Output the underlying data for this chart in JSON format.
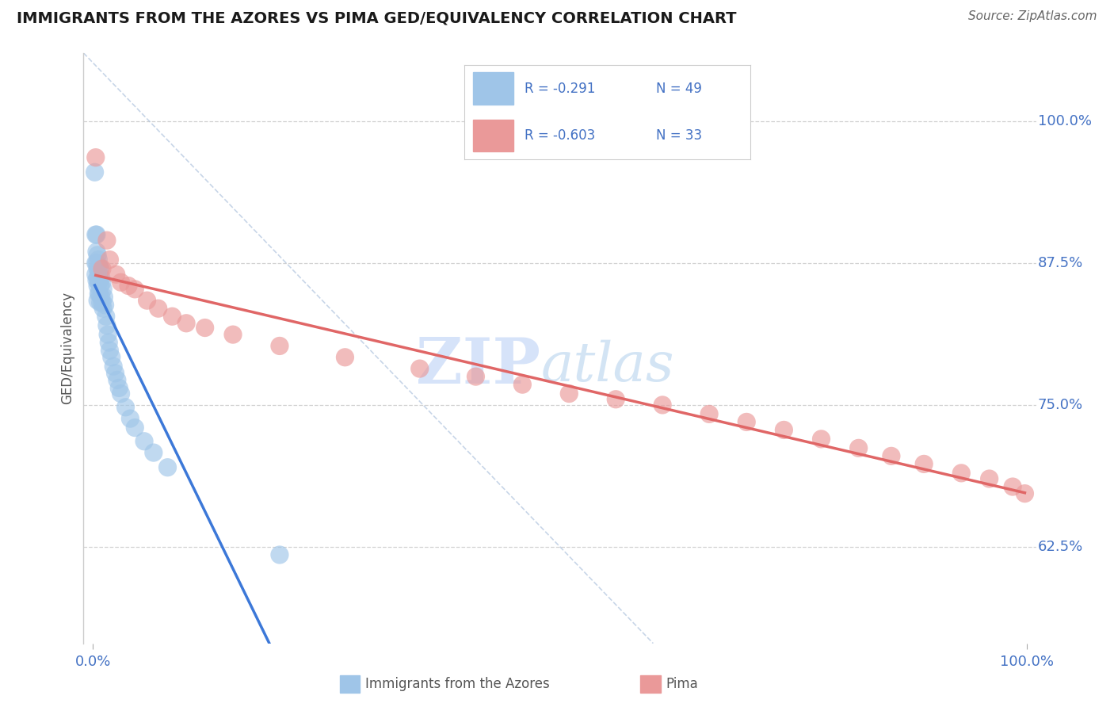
{
  "title": "IMMIGRANTS FROM THE AZORES VS PIMA GED/EQUIVALENCY CORRELATION CHART",
  "source_text": "Source: ZipAtlas.com",
  "ylabel": "GED/Equivalency",
  "right_ytick_labels": [
    "62.5%",
    "75.0%",
    "87.5%",
    "100.0%"
  ],
  "right_ytick_values": [
    0.625,
    0.75,
    0.875,
    1.0
  ],
  "xlim": [
    -0.01,
    1.01
  ],
  "ylim": [
    0.54,
    1.06
  ],
  "legend_r1": "R = -0.291",
  "legend_n1": "N = 49",
  "legend_r2": "R = -0.603",
  "legend_n2": "N = 33",
  "color_azores": "#9fc5e8",
  "color_pima": "#ea9999",
  "color_azores_line": "#3c78d8",
  "color_pima_line": "#e06666",
  "color_ref_line": "#b0c4de",
  "background_color": "#ffffff",
  "grid_color": "#cccccc",
  "bottom_legend_azores": "Immigrants from the Azores",
  "bottom_legend_pima": "Pima",
  "azores_x": [
    0.002,
    0.003,
    0.003,
    0.003,
    0.004,
    0.004,
    0.004,
    0.004,
    0.005,
    0.005,
    0.005,
    0.005,
    0.005,
    0.006,
    0.006,
    0.006,
    0.006,
    0.007,
    0.007,
    0.007,
    0.008,
    0.008,
    0.008,
    0.009,
    0.009,
    0.01,
    0.01,
    0.011,
    0.011,
    0.012,
    0.013,
    0.014,
    0.015,
    0.016,
    0.017,
    0.018,
    0.02,
    0.022,
    0.024,
    0.026,
    0.028,
    0.03,
    0.035,
    0.04,
    0.045,
    0.055,
    0.065,
    0.08,
    0.2
  ],
  "azores_y": [
    0.955,
    0.9,
    0.875,
    0.865,
    0.9,
    0.885,
    0.875,
    0.86,
    0.882,
    0.87,
    0.862,
    0.855,
    0.842,
    0.878,
    0.868,
    0.858,
    0.848,
    0.872,
    0.86,
    0.848,
    0.87,
    0.855,
    0.84,
    0.862,
    0.845,
    0.858,
    0.84,
    0.852,
    0.835,
    0.845,
    0.838,
    0.828,
    0.82,
    0.812,
    0.805,
    0.798,
    0.792,
    0.784,
    0.778,
    0.772,
    0.765,
    0.76,
    0.748,
    0.738,
    0.73,
    0.718,
    0.708,
    0.695,
    0.618
  ],
  "pima_x": [
    0.003,
    0.01,
    0.015,
    0.018,
    0.025,
    0.03,
    0.038,
    0.045,
    0.058,
    0.07,
    0.085,
    0.1,
    0.12,
    0.15,
    0.2,
    0.27,
    0.35,
    0.41,
    0.46,
    0.51,
    0.56,
    0.61,
    0.66,
    0.7,
    0.74,
    0.78,
    0.82,
    0.855,
    0.89,
    0.93,
    0.96,
    0.985,
    0.998
  ],
  "pima_y": [
    0.968,
    0.87,
    0.895,
    0.878,
    0.865,
    0.858,
    0.855,
    0.852,
    0.842,
    0.835,
    0.828,
    0.822,
    0.818,
    0.812,
    0.802,
    0.792,
    0.782,
    0.775,
    0.768,
    0.76,
    0.755,
    0.75,
    0.742,
    0.735,
    0.728,
    0.72,
    0.712,
    0.705,
    0.698,
    0.69,
    0.685,
    0.678,
    0.672
  ]
}
